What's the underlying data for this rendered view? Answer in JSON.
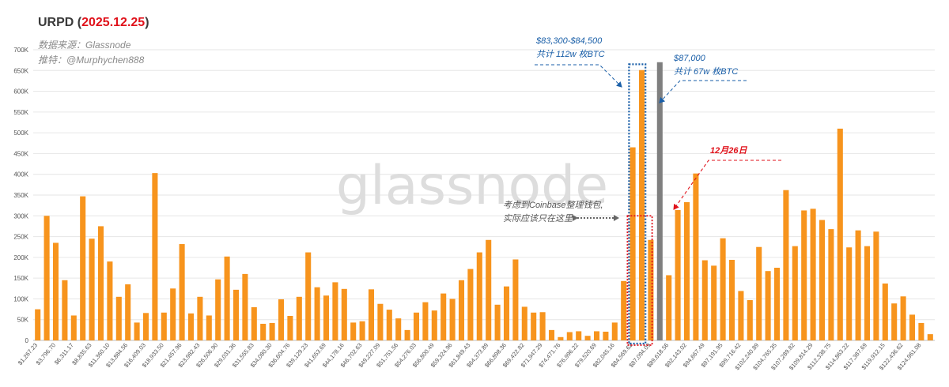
{
  "header": {
    "title_prefix": "URPD (",
    "title_date": "2025.12.25",
    "title_suffix": ")",
    "source_line": "数据来源：Glassnode",
    "twitter_line": "推特：@Murphychen888"
  },
  "watermark": "glassnode",
  "annotations": {
    "range_line1": "$83,300-$84,500",
    "range_line2": "共计 112w 枚BTC",
    "price_line1": "$87,000",
    "price_line2": "共计 67w 枚BTC",
    "date_label": "12月26日",
    "coinbase_line1": "考虑到Coinbase整理钱包,",
    "coinbase_line2": "实际应该只在这里"
  },
  "colors": {
    "bar": "#f7941d",
    "current_price_bar": "#7f7f7f",
    "blue_annotation": "#1a5fa8",
    "red_annotation": "#e0121b",
    "grid": "#e6e6e6"
  },
  "chart_data": {
    "type": "bar",
    "title": "URPD (2025.12.25)",
    "xlabel": "",
    "ylabel": "",
    "ylim": [
      0,
      700000
    ],
    "grid": true,
    "y_ticks": [
      "0",
      "50K",
      "100K",
      "150K",
      "200K",
      "250K",
      "300K",
      "350K",
      "400K",
      "450K",
      "500K",
      "550K",
      "600K",
      "650K",
      "700K"
    ],
    "x_tick_labels": [
      "$1,267.23",
      "$3,796.70",
      "$6,311.17",
      "$8,835.63",
      "$11,360.10",
      "$13,884.56",
      "$16,409.03",
      "$18,933.50",
      "$21,457.96",
      "$23,982.43",
      "$26,506.90",
      "$29,031.36",
      "$31,555.83",
      "$34,080.30",
      "$36,604.76",
      "$39,129.23",
      "$41,653.69",
      "$44,178.16",
      "$46,702.63",
      "$49,227.09",
      "$51,751.56",
      "$54,276.03",
      "$56,800.49",
      "$59,324.96",
      "$61,849.43",
      "$64,373.89",
      "$66,898.36",
      "$69,422.82",
      "$71,947.29",
      "$74,471.76",
      "$76,996.22",
      "$79,520.69",
      "$82,045.16",
      "$84,569.62",
      "$87,094.09",
      "$89,618.56",
      "$92,143.02",
      "$94,667.49",
      "$97,191.95",
      "$99,716.42",
      "$102,240.89",
      "$104,765.35",
      "$107,289.82",
      "$109,814.29",
      "$112,338.75",
      "$114,863.22",
      "$117,387.69",
      "$119,912.15",
      "$122,436.62",
      "$124,961.08"
    ],
    "values": [
      75000,
      300000,
      235000,
      145000,
      60000,
      347000,
      245000,
      275000,
      190000,
      105000,
      135000,
      43000,
      66000,
      403000,
      67000,
      125000,
      232000,
      65000,
      105000,
      60000,
      147000,
      202000,
      122000,
      160000,
      80000,
      40000,
      42000,
      99000,
      59000,
      105000,
      212000,
      128000,
      108000,
      140000,
      124000,
      43000,
      46000,
      123000,
      88000,
      74000,
      53000,
      25000,
      67000,
      92000,
      72000,
      113000,
      100000,
      145000,
      172000,
      212000,
      242000,
      86000,
      130000,
      195000,
      81000,
      67000,
      68000,
      25000,
      8000,
      20000,
      22000,
      11000,
      22000,
      21000,
      43000,
      143000,
      465000,
      651000,
      242000,
      670000,
      157000,
      314000,
      333000,
      402000,
      193000,
      180000,
      246000,
      194000,
      119000,
      97000,
      225000,
      167000,
      175000,
      362000,
      227000,
      313000,
      317000,
      290000,
      268000,
      510000,
      224000,
      265000,
      227000,
      262000,
      137000,
      89000,
      106000,
      62000,
      42000,
      15000
    ],
    "highlight_index": 69
  }
}
